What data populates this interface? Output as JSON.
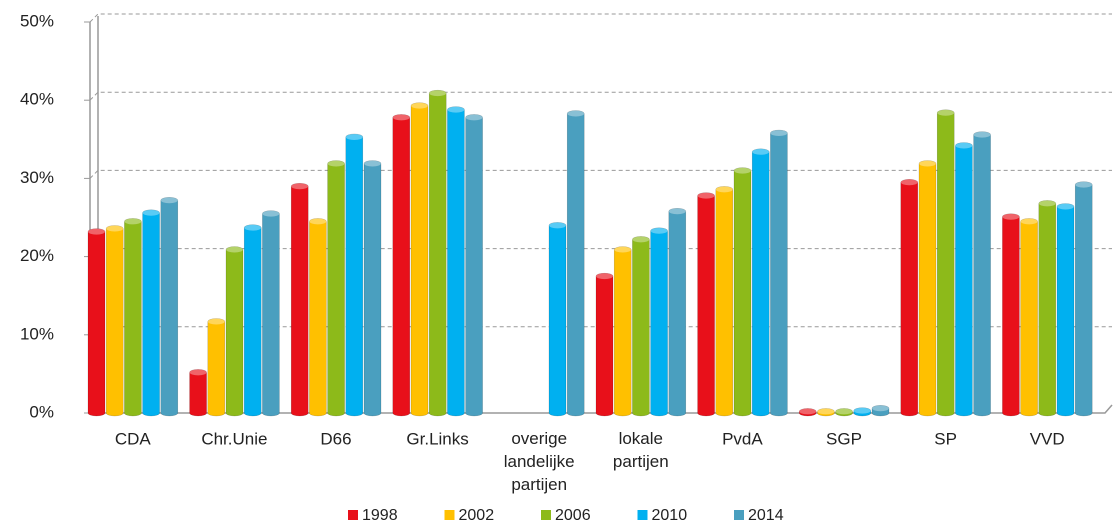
{
  "chart_data": {
    "type": "bar",
    "categories": [
      "CDA",
      "Chr.Unie",
      "D66",
      "Gr.Links",
      "overige landelijke partijen",
      "lokale partijen",
      "PvdA",
      "SGP",
      "SP",
      "VVD"
    ],
    "series": [
      {
        "name": "1998",
        "color": "#e8101a",
        "values": [
          23.2,
          5.2,
          29,
          37.8,
          null,
          17.5,
          27.8,
          0.2,
          29.5,
          25.1
        ]
      },
      {
        "name": "2002",
        "color": "#ffc000",
        "values": [
          23.6,
          11.7,
          24.5,
          39.3,
          null,
          20.9,
          28.6,
          0.2,
          31.9,
          24.5
        ]
      },
      {
        "name": "2006",
        "color": "#8dba1a",
        "values": [
          24.5,
          20.9,
          31.9,
          40.9,
          null,
          22.2,
          31,
          0.2,
          38.4,
          26.8
        ]
      },
      {
        "name": "2010",
        "color": "#00b0f0",
        "values": [
          25.6,
          23.7,
          35.3,
          38.8,
          24,
          23.3,
          33.4,
          0.3,
          34.2,
          26.4
        ]
      },
      {
        "name": "2014",
        "color": "#4a9fbf",
        "values": [
          27.2,
          25.5,
          31.9,
          37.8,
          38.3,
          25.8,
          35.8,
          0.6,
          35.6,
          29.2
        ]
      }
    ],
    "ylim": [
      0,
      50
    ],
    "yticks": [
      {
        "value": 0,
        "label": "0%"
      },
      {
        "value": 10,
        "label": "10%"
      },
      {
        "value": 20,
        "label": "20%"
      },
      {
        "value": 30,
        "label": "30%"
      },
      {
        "value": 40,
        "label": "40%"
      },
      {
        "value": 50,
        "label": "50%"
      }
    ],
    "grid": true
  }
}
